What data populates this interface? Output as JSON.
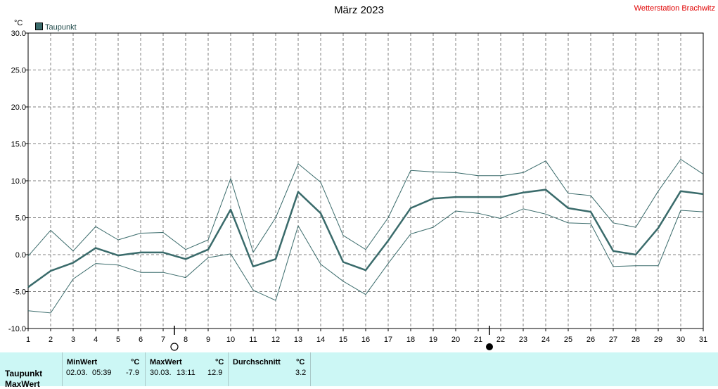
{
  "header": {
    "title": "März 2023",
    "station": "Wetterstation Brachwitz",
    "unit": "°C"
  },
  "legend": {
    "label": "Taupunkt",
    "color": "#3a6b6b"
  },
  "colors": {
    "main_line": "#3a6b6b",
    "envelope_line": "#3a6b6b",
    "grid": "#808080",
    "table_bg": "#ccf7f5"
  },
  "chart_data": {
    "type": "line",
    "title": "März 2023",
    "ylabel": "°C",
    "x": [
      1,
      2,
      3,
      4,
      5,
      6,
      7,
      8,
      9,
      10,
      11,
      12,
      13,
      14,
      15,
      16,
      17,
      18,
      19,
      20,
      21,
      22,
      23,
      24,
      25,
      26,
      27,
      28,
      29,
      30,
      31
    ],
    "ylim": [
      -10,
      30
    ],
    "yticks": [
      "-10.0",
      "-5.0",
      "0.0",
      "5.0",
      "10.0",
      "15.0",
      "20.0",
      "25.0",
      "30.0"
    ],
    "grid": true,
    "moon_phases": [
      {
        "day": 7.5,
        "phase": "full moon"
      },
      {
        "day": 21.5,
        "phase": "new moon"
      }
    ],
    "series": [
      {
        "name": "Taupunkt",
        "role": "mean",
        "values": [
          -4.4,
          -2.2,
          -1.1,
          0.9,
          -0.1,
          0.3,
          0.3,
          -0.6,
          0.7,
          6.1,
          -1.6,
          -0.6,
          8.5,
          5.6,
          -1.0,
          -2.1,
          1.9,
          6.3,
          7.6,
          7.8,
          7.8,
          7.8,
          8.4,
          8.8,
          6.3,
          5.8,
          0.5,
          0.0,
          3.6,
          8.6,
          8.2
        ]
      },
      {
        "role": "max",
        "values": [
          -0.2,
          3.3,
          0.5,
          3.8,
          2.0,
          2.9,
          3.0,
          0.7,
          2.0,
          10.3,
          0.3,
          5.0,
          12.3,
          9.8,
          2.6,
          0.7,
          5.0,
          11.4,
          11.2,
          11.1,
          10.7,
          10.7,
          11.1,
          12.7,
          8.3,
          8.0,
          4.3,
          3.7,
          8.6,
          12.9,
          10.9
        ]
      },
      {
        "role": "min",
        "values": [
          -7.6,
          -7.9,
          -3.3,
          -1.2,
          -1.4,
          -2.4,
          -2.4,
          -3.1,
          -0.4,
          0.1,
          -4.8,
          -6.2,
          3.9,
          -1.3,
          -3.6,
          -5.4,
          -1.2,
          2.8,
          3.7,
          5.9,
          5.6,
          4.9,
          6.2,
          5.5,
          4.3,
          4.2,
          -1.6,
          -1.5,
          -1.5,
          6.0,
          5.8
        ]
      }
    ]
  },
  "summary_table": {
    "rows": [
      "Taupunkt",
      "MaxWert"
    ],
    "min": {
      "header": "MinWert",
      "unit": "°C",
      "date": "02.03.",
      "time": "05:39",
      "value": "-7.9"
    },
    "max": {
      "header": "MaxWert",
      "unit": "°C",
      "date": "30.03.",
      "time": "13:11",
      "value": "12.9"
    },
    "avg": {
      "header": "Durchschnitt",
      "unit": "°C",
      "value": "3.2"
    }
  }
}
